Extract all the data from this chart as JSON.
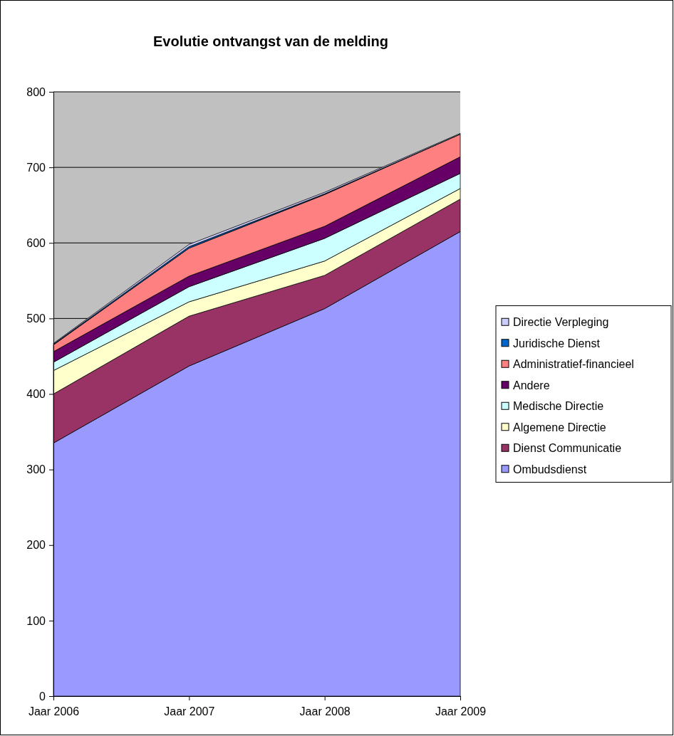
{
  "chart_data": {
    "type": "area",
    "stacked": true,
    "title": "Evolutie ontvangst van de melding",
    "categories": [
      "Jaar 2006",
      "Jaar 2007",
      "Jaar 2008",
      "Jaar 2009"
    ],
    "series": [
      {
        "name": "Ombudsdienst",
        "color": "#9999ff",
        "values": [
          335,
          437,
          513,
          615
        ]
      },
      {
        "name": "Dienst Communicatie",
        "color": "#993366",
        "values": [
          65,
          66,
          44,
          43
        ]
      },
      {
        "name": "Algemene Directie",
        "color": "#ffffcc",
        "values": [
          31,
          19,
          19,
          14
        ]
      },
      {
        "name": "Medische Directie",
        "color": "#ccffff",
        "values": [
          11,
          20,
          30,
          20
        ]
      },
      {
        "name": "Andere",
        "color": "#660066",
        "values": [
          14,
          14,
          16,
          22
        ]
      },
      {
        "name": "Administratief-financieel",
        "color": "#ff8080",
        "values": [
          9,
          37,
          42,
          30
        ]
      },
      {
        "name": "Juridische Dienst",
        "color": "#0066cc",
        "values": [
          1,
          2,
          1,
          0
        ]
      },
      {
        "name": "Directie Verpleging",
        "color": "#ccccff",
        "values": [
          1,
          3,
          2,
          1
        ]
      }
    ],
    "ylim": [
      0,
      800
    ],
    "yticks": [
      0,
      100,
      200,
      300,
      400,
      500,
      600,
      700,
      800
    ],
    "grid": "y",
    "legend": "right"
  }
}
